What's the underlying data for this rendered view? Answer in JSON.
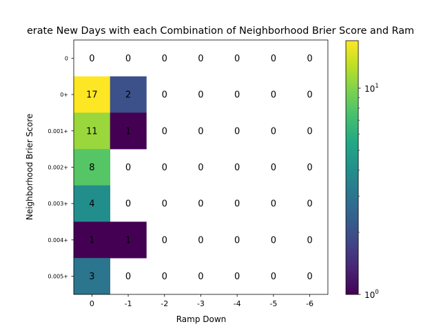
{
  "chart_data": {
    "type": "heatmap",
    "title": "erate New Days with each Combination of Neighborhood Brier Score and Ram",
    "xlabel": "Ramp Down",
    "ylabel": "Neighborhood Brier Score",
    "x_categories": [
      "0",
      "-1",
      "-2",
      "-3",
      "-4",
      "-5",
      "-6"
    ],
    "y_categories": [
      "0",
      "0+",
      "0.001+",
      "0.002+",
      "0.003+",
      "0.004+",
      "0.005+"
    ],
    "values": [
      [
        0,
        0,
        0,
        0,
        0,
        0,
        0
      ],
      [
        17,
        2,
        0,
        0,
        0,
        0,
        0
      ],
      [
        11,
        1,
        0,
        0,
        0,
        0,
        0
      ],
      [
        8,
        0,
        0,
        0,
        0,
        0,
        0
      ],
      [
        4,
        0,
        0,
        0,
        0,
        0,
        0
      ],
      [
        1,
        1,
        0,
        0,
        0,
        0,
        0
      ],
      [
        3,
        0,
        0,
        0,
        0,
        0,
        0
      ]
    ],
    "colorbar": {
      "scale": "log",
      "colormap": "viridis",
      "range": [
        1,
        17
      ],
      "major_tick_labels": [
        {
          "value": 1,
          "base": "10",
          "exp": "0"
        },
        {
          "value": 10,
          "base": "10",
          "exp": "1"
        }
      ]
    },
    "zero_cells": "blank"
  }
}
